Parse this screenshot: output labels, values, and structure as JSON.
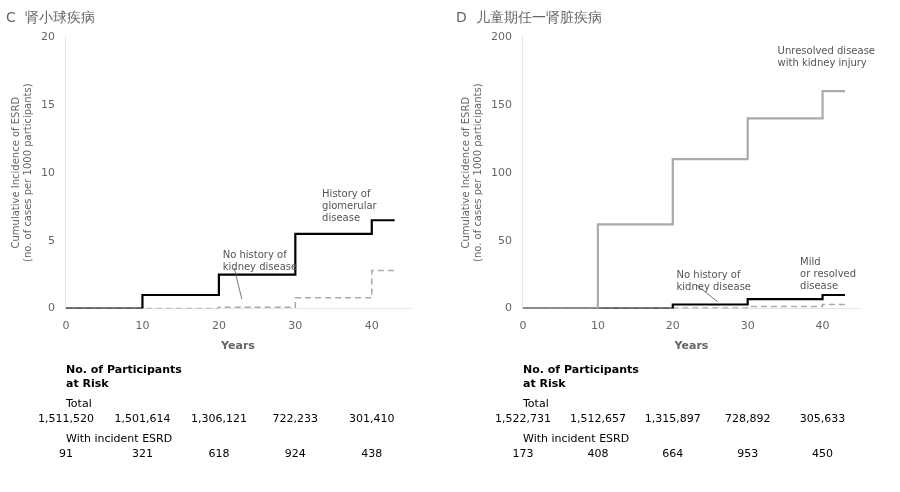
{
  "chart_data": [
    {
      "type": "line",
      "title": "C  肾小球疾病",
      "xlabel": "Years",
      "ylabel": "Cumulative Incidence of ESRD\n(no. of cases per 1000 participants)",
      "xlim": [
        0,
        45
      ],
      "xticks": [
        0,
        10,
        20,
        30,
        40
      ],
      "ylim": [
        0,
        20
      ],
      "yticks": [
        0,
        5,
        10,
        15,
        20
      ],
      "grid": false,
      "series": [
        {
          "color": "#000000",
          "line_style": "solid",
          "x": [
            0,
            10,
            10,
            20,
            20,
            30,
            30,
            40,
            40,
            43
          ],
          "values": [
            0,
            0,
            1.0,
            1.0,
            2.5,
            2.5,
            5.5,
            5.5,
            6.5,
            6.5
          ]
        },
        {
          "color": "#aaaaaa",
          "line_style": "dashed",
          "x": [
            0,
            20,
            20,
            30,
            30,
            40,
            40,
            43
          ],
          "values": [
            0,
            0,
            0.1,
            0.1,
            0.8,
            0.8,
            2.8,
            2.8
          ]
        }
      ],
      "annotations": [
        {
          "text": "History of\nglomerular\ndisease",
          "x": 33.5,
          "y": 7.5
        },
        {
          "text": "No history of\nkidney disease",
          "x": 20.5,
          "y": 3.5,
          "arrow_from": [
            22.0,
            3.0
          ],
          "arrow_to": [
            23.0,
            0.7
          ]
        }
      ],
      "table": {
        "title": "No. of Participants\nat Risk",
        "x": [
          0,
          10,
          20,
          30,
          40
        ],
        "rows": [
          {
            "label": "Total",
            "values": [
              "1,511,520",
              "1,501,614",
              "1,306,121",
              "722,233",
              "301,410"
            ]
          },
          {
            "label": "With incident ESRD",
            "values": [
              "91",
              "321",
              "618",
              "924",
              "438"
            ]
          }
        ]
      }
    },
    {
      "type": "line",
      "title": "D  儿童期任一肾脏疾病",
      "xlabel": "Years",
      "ylabel": "Cumulative Incidence of ESRD\n(no. of cases per 1000 participants)",
      "xlim": [
        0,
        45
      ],
      "xticks": [
        0,
        10,
        20,
        30,
        40
      ],
      "ylim": [
        0,
        200
      ],
      "yticks": [
        0,
        50,
        100,
        150,
        200
      ],
      "grid": false,
      "series": [
        {
          "color": "#aaaaaa",
          "line_style": "solid",
          "x": [
            0,
            10,
            10,
            20,
            20,
            30,
            30,
            40,
            40,
            43
          ],
          "values": [
            0,
            0,
            62,
            62,
            110,
            110,
            140,
            140,
            160,
            160
          ]
        },
        {
          "color": "#000000",
          "line_style": "solid",
          "x": [
            0,
            20,
            20,
            30,
            30,
            40,
            40,
            43
          ],
          "values": [
            0,
            0,
            3,
            3,
            7,
            7,
            10,
            10
          ]
        },
        {
          "color": "#aaaaaa",
          "line_style": "dashed",
          "x": [
            0,
            20,
            20,
            30,
            30,
            40,
            40,
            43
          ],
          "values": [
            0,
            0,
            0.5,
            0.5,
            1.5,
            1.5,
            3.0,
            3.0
          ]
        }
      ],
      "annotations": [
        {
          "text": "Unresolved disease\nwith kidney injury",
          "x": 34.0,
          "y": 185.0
        },
        {
          "text": "No history of\nkidney disease",
          "x": 20.5,
          "y": 20.0,
          "arrow_from": [
            23.0,
            18.0
          ],
          "arrow_to": [
            26.0,
            5.0
          ]
        },
        {
          "text": "Mild\nor resolved\ndisease",
          "x": 37.0,
          "y": 25.0
        }
      ],
      "table": {
        "title": "No. of Participants\nat Risk",
        "x": [
          0,
          10,
          20,
          30,
          40
        ],
        "rows": [
          {
            "label": "Total",
            "values": [
              "1,522,731",
              "1,512,657",
              "1,315,897",
              "728,892",
              "305,633"
            ]
          },
          {
            "label": "With incident ESRD",
            "values": [
              "173",
              "408",
              "664",
              "953",
              "450"
            ]
          }
        ]
      }
    }
  ]
}
